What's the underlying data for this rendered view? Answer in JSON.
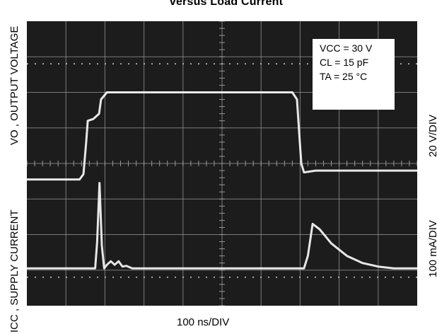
{
  "title": "versus Load Current",
  "scope": {
    "background": "#1c1c1c",
    "grid_color": "#9a9a9a",
    "trace_color": "#f2f2f2",
    "divisions_x": 10,
    "divisions_y": 8
  },
  "axes": {
    "x_label": "100 ns/DIV",
    "y_label_top": "VO , OUTPUT VOLTAGE",
    "y_label_bottom": "ICC , SUPPLY CURRENT",
    "right_label_top": "20 V/DIV",
    "right_label_bottom": "100 mA/DIV"
  },
  "legend": {
    "vcc": "VCC = 30 V",
    "cl": "CL = 15 pF",
    "ta": "TA = 25 °C"
  },
  "chart_data": {
    "type": "line",
    "title": "versus Load Current",
    "xlabel": "100 ns/DIV",
    "x_unit": "div",
    "xlim": [
      0,
      10
    ],
    "series": [
      {
        "name": "VO , OUTPUT VOLTAGE",
        "unit": "div (20 V/DIV)",
        "x": [
          0.0,
          1.35,
          1.45,
          1.52,
          1.56,
          1.7,
          1.85,
          1.9,
          2.05,
          2.5,
          4.5,
          6.8,
          6.92,
          6.98,
          7.03,
          7.1,
          7.4,
          10.0
        ],
        "y": [
          -0.45,
          -0.45,
          -0.3,
          0.6,
          1.2,
          1.25,
          1.4,
          1.8,
          2.0,
          2.0,
          2.0,
          2.0,
          1.8,
          0.8,
          0.0,
          -0.25,
          -0.2,
          -0.2
        ]
      },
      {
        "name": "ICC , SUPPLY CURRENT",
        "unit": "div (100 mA/DIV)",
        "x": [
          0.0,
          1.75,
          1.8,
          1.86,
          1.92,
          1.98,
          2.05,
          2.15,
          2.25,
          2.35,
          2.45,
          2.55,
          2.7,
          3.0,
          7.1,
          7.2,
          7.32,
          7.5,
          7.8,
          8.2,
          8.6,
          9.0,
          9.4,
          10.0
        ],
        "y": [
          -2.95,
          -2.95,
          -2.2,
          -0.55,
          -2.3,
          -2.95,
          -2.85,
          -2.75,
          -2.85,
          -2.75,
          -2.9,
          -2.88,
          -2.95,
          -2.95,
          -2.95,
          -2.6,
          -1.7,
          -1.85,
          -2.25,
          -2.6,
          -2.8,
          -2.9,
          -2.95,
          -2.95
        ]
      }
    ],
    "grid": true
  }
}
